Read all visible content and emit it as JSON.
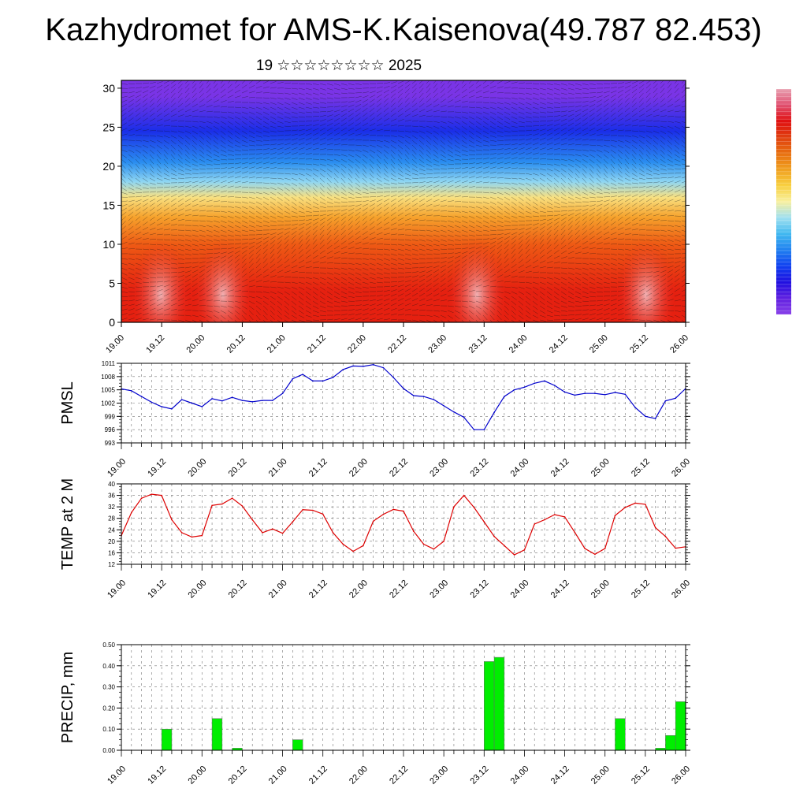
{
  "header": {
    "title": "Kazhydromet for AMS-K.Kaisenova(49.787 82.453)",
    "subtitle": "19 ☆☆☆☆☆☆☆☆ 2025"
  },
  "colorbar": {
    "colors": [
      "#e8a0b0",
      "#e05070",
      "#e01010",
      "#e04010",
      "#e87010",
      "#f0a020",
      "#f8d040",
      "#f8f0a0",
      "#a0e0f0",
      "#40b8f0",
      "#2080f0",
      "#1040f0",
      "#2010e0",
      "#6020e0",
      "#8840e8"
    ]
  },
  "chart_data": [
    {
      "type": "heatmap",
      "name": "vertical-section",
      "x_ticks": [
        "19.00",
        "19.12",
        "20.00",
        "20.12",
        "21.00",
        "21.12",
        "22.00",
        "22.12",
        "23.00",
        "23.12",
        "24.00",
        "24.12",
        "25.00",
        "25.12",
        "26.00"
      ],
      "y_ticks": [
        "0",
        "5",
        "10",
        "15",
        "20",
        "25",
        "30"
      ],
      "ylim": [
        0,
        31
      ],
      "color_bands": [
        {
          "from": 0,
          "to": 8,
          "color": "#e52010"
        },
        {
          "from": 8,
          "to": 12,
          "color": "#ee5a14"
        },
        {
          "from": 12,
          "to": 15,
          "color": "#f6a22c"
        },
        {
          "from": 15,
          "to": 17,
          "color": "#f8e080"
        },
        {
          "from": 17,
          "to": 19,
          "color": "#8fd6f2"
        },
        {
          "from": 19,
          "to": 22,
          "color": "#2a8ef0"
        },
        {
          "from": 22,
          "to": 27,
          "color": "#1a2ee8"
        },
        {
          "from": 27,
          "to": 31,
          "color": "#7a34e6"
        }
      ],
      "grid": false
    },
    {
      "type": "line",
      "ylabel": "PMSL",
      "y_ticks": [
        "993",
        "996",
        "999",
        "1002",
        "1005",
        "1008",
        "1011"
      ],
      "ylim": [
        993,
        1011
      ],
      "x_ticks": [
        "19.00",
        "19.12",
        "20.00",
        "20.12",
        "21.00",
        "21.12",
        "22.00",
        "22.12",
        "23.00",
        "23.12",
        "24.00",
        "24.12",
        "25.00",
        "25.12",
        "26.00"
      ],
      "x_range": [
        0,
        56
      ],
      "series": [
        {
          "color": "#0000cc",
          "x": [
            0,
            1,
            2,
            3,
            4,
            5,
            6,
            7,
            8,
            9,
            10,
            11,
            12,
            13,
            14,
            15,
            16,
            17,
            18,
            19,
            20,
            21,
            22,
            23,
            24,
            25,
            26,
            27,
            28,
            29,
            30,
            31,
            32,
            33,
            34,
            35,
            36,
            37,
            38,
            39,
            40,
            41,
            42,
            43,
            44,
            45,
            46,
            47,
            48,
            49,
            50,
            51,
            52,
            53,
            54,
            55,
            56
          ],
          "values": [
            1005.2,
            1004.8,
            1003.5,
            1002.2,
            1001.2,
            1000.7,
            1002.8,
            1002.0,
            1001.2,
            1003.0,
            1002.5,
            1003.3,
            1002.6,
            1002.3,
            1002.6,
            1002.6,
            1004.2,
            1007.5,
            1008.5,
            1007.0,
            1007.0,
            1007.8,
            1009.6,
            1010.4,
            1010.3,
            1010.7,
            1010.0,
            1007.8,
            1005.3,
            1003.7,
            1003.5,
            1002.8,
            1001.4,
            1000.0,
            998.8,
            996.0,
            996.0,
            999.9,
            1003.5,
            1005.0,
            1005.6,
            1006.5,
            1007.0,
            1006.0,
            1004.5,
            1003.8,
            1004.2,
            1004.2,
            1003.9,
            1004.4,
            1004.0,
            1001.0,
            999.0,
            998.5,
            1002.5,
            1003.1,
            1005.3
          ]
        }
      ],
      "grid": true
    },
    {
      "type": "line",
      "ylabel": "TEMP at 2 M",
      "y_ticks": [
        "12",
        "16",
        "20",
        "24",
        "28",
        "32",
        "36",
        "40"
      ],
      "ylim": [
        12,
        40
      ],
      "x_ticks": [
        "19.00",
        "19.12",
        "20.00",
        "20.12",
        "21.00",
        "21.12",
        "22.00",
        "22.12",
        "23.00",
        "23.12",
        "24.00",
        "24.12",
        "25.00",
        "25.12",
        "26.00"
      ],
      "x_range": [
        0,
        56
      ],
      "series": [
        {
          "color": "#dd0000",
          "x": [
            0,
            1,
            2,
            3,
            4,
            5,
            6,
            7,
            8,
            9,
            10,
            11,
            12,
            13,
            14,
            15,
            16,
            17,
            18,
            19,
            20,
            21,
            22,
            23,
            24,
            25,
            26,
            27,
            28,
            29,
            30,
            31,
            32,
            33,
            34,
            35,
            36,
            37,
            38,
            39,
            40,
            41,
            42,
            43,
            44,
            45,
            46,
            47,
            48,
            49,
            50,
            51,
            52,
            53,
            54,
            55,
            56
          ],
          "values": [
            22,
            30,
            35,
            36.4,
            36,
            27.5,
            23,
            21.5,
            22,
            32.5,
            33,
            35,
            32.3,
            27.5,
            23,
            24.3,
            22.8,
            26.8,
            31,
            30.8,
            29.5,
            23,
            19,
            16.5,
            18.5,
            27,
            29.4,
            31.1,
            30.5,
            23.5,
            19,
            17.3,
            20,
            32,
            36,
            31.8,
            26.8,
            21.7,
            18.5,
            15.3,
            17,
            26,
            27.5,
            29.3,
            28.5,
            23.1,
            17.5,
            15.5,
            17.5,
            29,
            31.8,
            33.3,
            32.9,
            24.8,
            21.7,
            17.6,
            18.1
          ]
        }
      ],
      "grid": true
    },
    {
      "type": "bar",
      "ylabel": "PRECIP, mm",
      "y_ticks": [
        "0.00",
        "0.10",
        "0.20",
        "0.30",
        "0.40",
        "0.50"
      ],
      "ylim": [
        0,
        0.5
      ],
      "x_ticks": [
        "19.00",
        "19.12",
        "20.00",
        "20.12",
        "21.00",
        "21.12",
        "22.00",
        "22.12",
        "23.00",
        "23.12",
        "24.00",
        "24.12",
        "25.00",
        "25.12",
        "26.00"
      ],
      "x_range": [
        0,
        56
      ],
      "series": [
        {
          "color": "#00ee00",
          "x": [
            5,
            10,
            12,
            18,
            37,
            38,
            50,
            54,
            55,
            56
          ],
          "values": [
            0.1,
            0.15,
            0.01,
            0.05,
            0.42,
            0.44,
            0.15,
            0.01,
            0.07,
            0.23
          ]
        }
      ],
      "grid": true
    }
  ]
}
